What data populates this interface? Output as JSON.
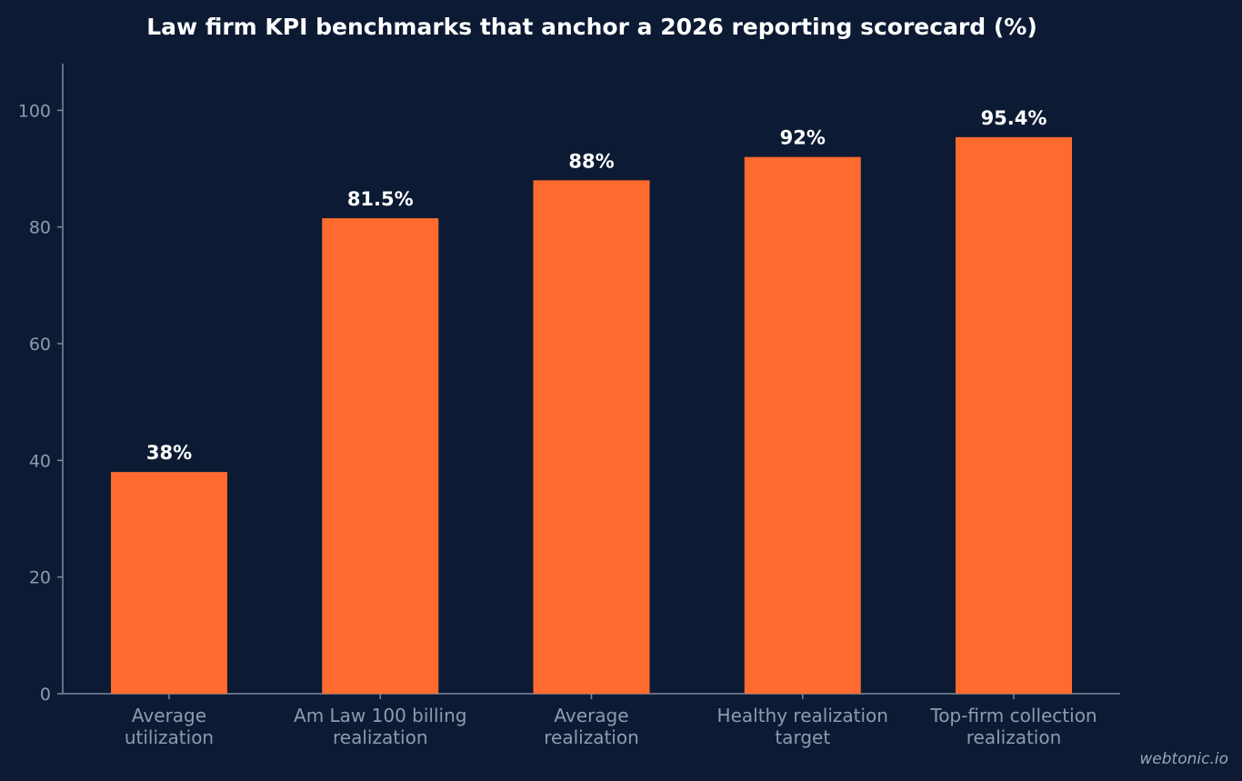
{
  "chart_data": {
    "type": "bar",
    "title": "Law firm KPI benchmarks that anchor a 2026 reporting scorecard (%)",
    "xlabel": "",
    "ylabel": "",
    "categories": [
      [
        "Average",
        "utilization"
      ],
      [
        "Am Law 100 billing",
        "realization"
      ],
      [
        "Average",
        "realization"
      ],
      [
        "Healthy realization",
        "target"
      ],
      [
        "Top-firm collection",
        "realization"
      ]
    ],
    "values": [
      38,
      81.5,
      88,
      92,
      95.4
    ],
    "data_labels": [
      "38%",
      "81.5%",
      "88%",
      "92%",
      "95.4%"
    ],
    "ylim": [
      0,
      108
    ],
    "yticks": [
      0,
      20,
      40,
      60,
      80,
      100
    ],
    "grid": false,
    "legend": "none",
    "colors": {
      "background": "#0c1b33",
      "bar": "#ff6b2f",
      "axis": "#7d8aa0",
      "tick_text": "#8d9bb0",
      "title_text": "#ffffff"
    }
  },
  "watermark": "webtonic.io"
}
